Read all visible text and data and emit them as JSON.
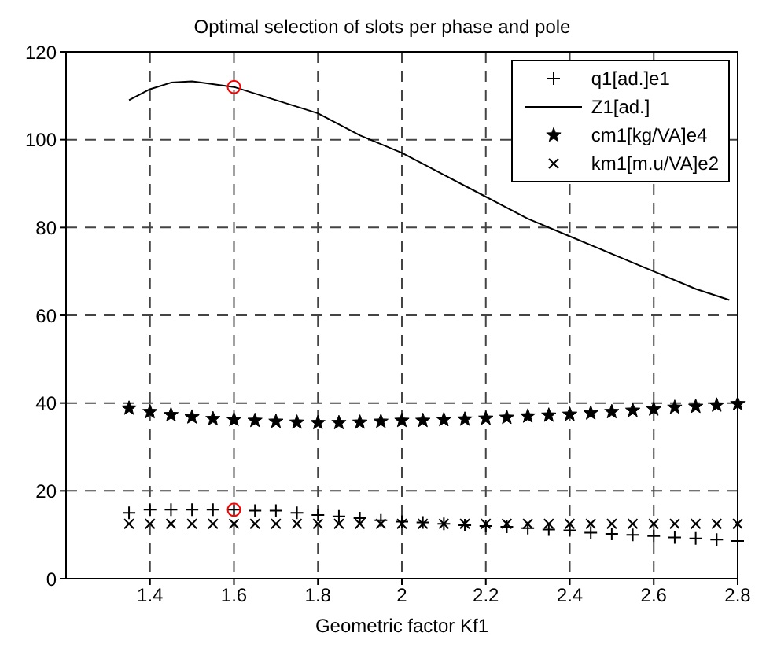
{
  "chart_data": {
    "type": "scatter",
    "title": "Optimal selection of slots per phase and pole",
    "xlabel": "Geometric factor Kf1",
    "x": [
      1.35,
      1.4,
      1.45,
      1.5,
      1.55,
      1.6,
      1.65,
      1.7,
      1.75,
      1.8,
      1.85,
      1.9,
      1.95,
      2.0,
      2.05,
      2.1,
      2.15,
      2.2,
      2.25,
      2.3,
      2.35,
      2.4,
      2.45,
      2.5,
      2.55,
      2.6,
      2.65,
      2.7,
      2.75,
      2.8
    ],
    "series": [
      {
        "name": "q1[ad.]e1",
        "marker": "cross",
        "color": "#000000",
        "values": [
          15,
          15.7,
          15.7,
          15.7,
          15.7,
          15.7,
          15.5,
          15.5,
          15,
          14.5,
          14.2,
          13.8,
          13.3,
          13,
          12.8,
          12.5,
          12.2,
          12,
          11.8,
          11.5,
          11.2,
          11,
          10.5,
          10.2,
          10,
          9.7,
          9.4,
          9.2,
          8.9,
          8.6
        ]
      },
      {
        "name": "Z1[ad.]",
        "type": "line",
        "marker": "none",
        "line_style": "solid",
        "color": "#000000",
        "x": [
          1.35,
          1.4,
          1.45,
          1.5,
          1.6,
          1.7,
          1.8,
          1.9,
          2.0,
          2.1,
          2.2,
          2.3,
          2.4,
          2.5,
          2.6,
          2.7,
          2.78
        ],
        "values": [
          109,
          111.5,
          113,
          113.3,
          112,
          109,
          106,
          101,
          97,
          92,
          87,
          82,
          78,
          74,
          70,
          66,
          63.5
        ]
      },
      {
        "name": "cm1[kg/VA]e4",
        "marker": "star",
        "color": "#000000",
        "values": [
          38.8,
          38,
          37.3,
          36.8,
          36.4,
          36.2,
          36,
          35.8,
          35.6,
          35.5,
          35.5,
          35.6,
          35.8,
          36,
          36,
          36.2,
          36.3,
          36.5,
          36.7,
          37,
          37.2,
          37.4,
          37.7,
          38,
          38.3,
          38.6,
          39,
          39.2,
          39.5,
          39.8
        ]
      },
      {
        "name": "km1[m.u/VA]e2",
        "marker": "x",
        "color": "#000000",
        "values": [
          12.5,
          12.5,
          12.5,
          12.5,
          12.5,
          12.5,
          12.5,
          12.5,
          12.5,
          12.5,
          12.5,
          12.5,
          12.5,
          12.5,
          12.5,
          12.5,
          12.5,
          12.5,
          12.5,
          12.5,
          12.5,
          12.5,
          12.5,
          12.5,
          12.5,
          12.5,
          12.5,
          12.5,
          12.5,
          12.5
        ]
      },
      {
        "marker": "circle",
        "color": "#ff0000",
        "x": [
          1.6,
          1.6
        ],
        "values": [
          112,
          15.7
        ]
      }
    ],
    "xlim": [
      1.2,
      2.8
    ],
    "xticks": [
      1.4,
      1.6,
      1.8,
      2,
      2.2,
      2.4,
      2.6,
      2.8
    ],
    "ylim": [
      0,
      120
    ],
    "yticks": [
      0,
      20,
      40,
      60,
      80,
      100,
      120
    ],
    "grid": true,
    "legend": "top right"
  }
}
